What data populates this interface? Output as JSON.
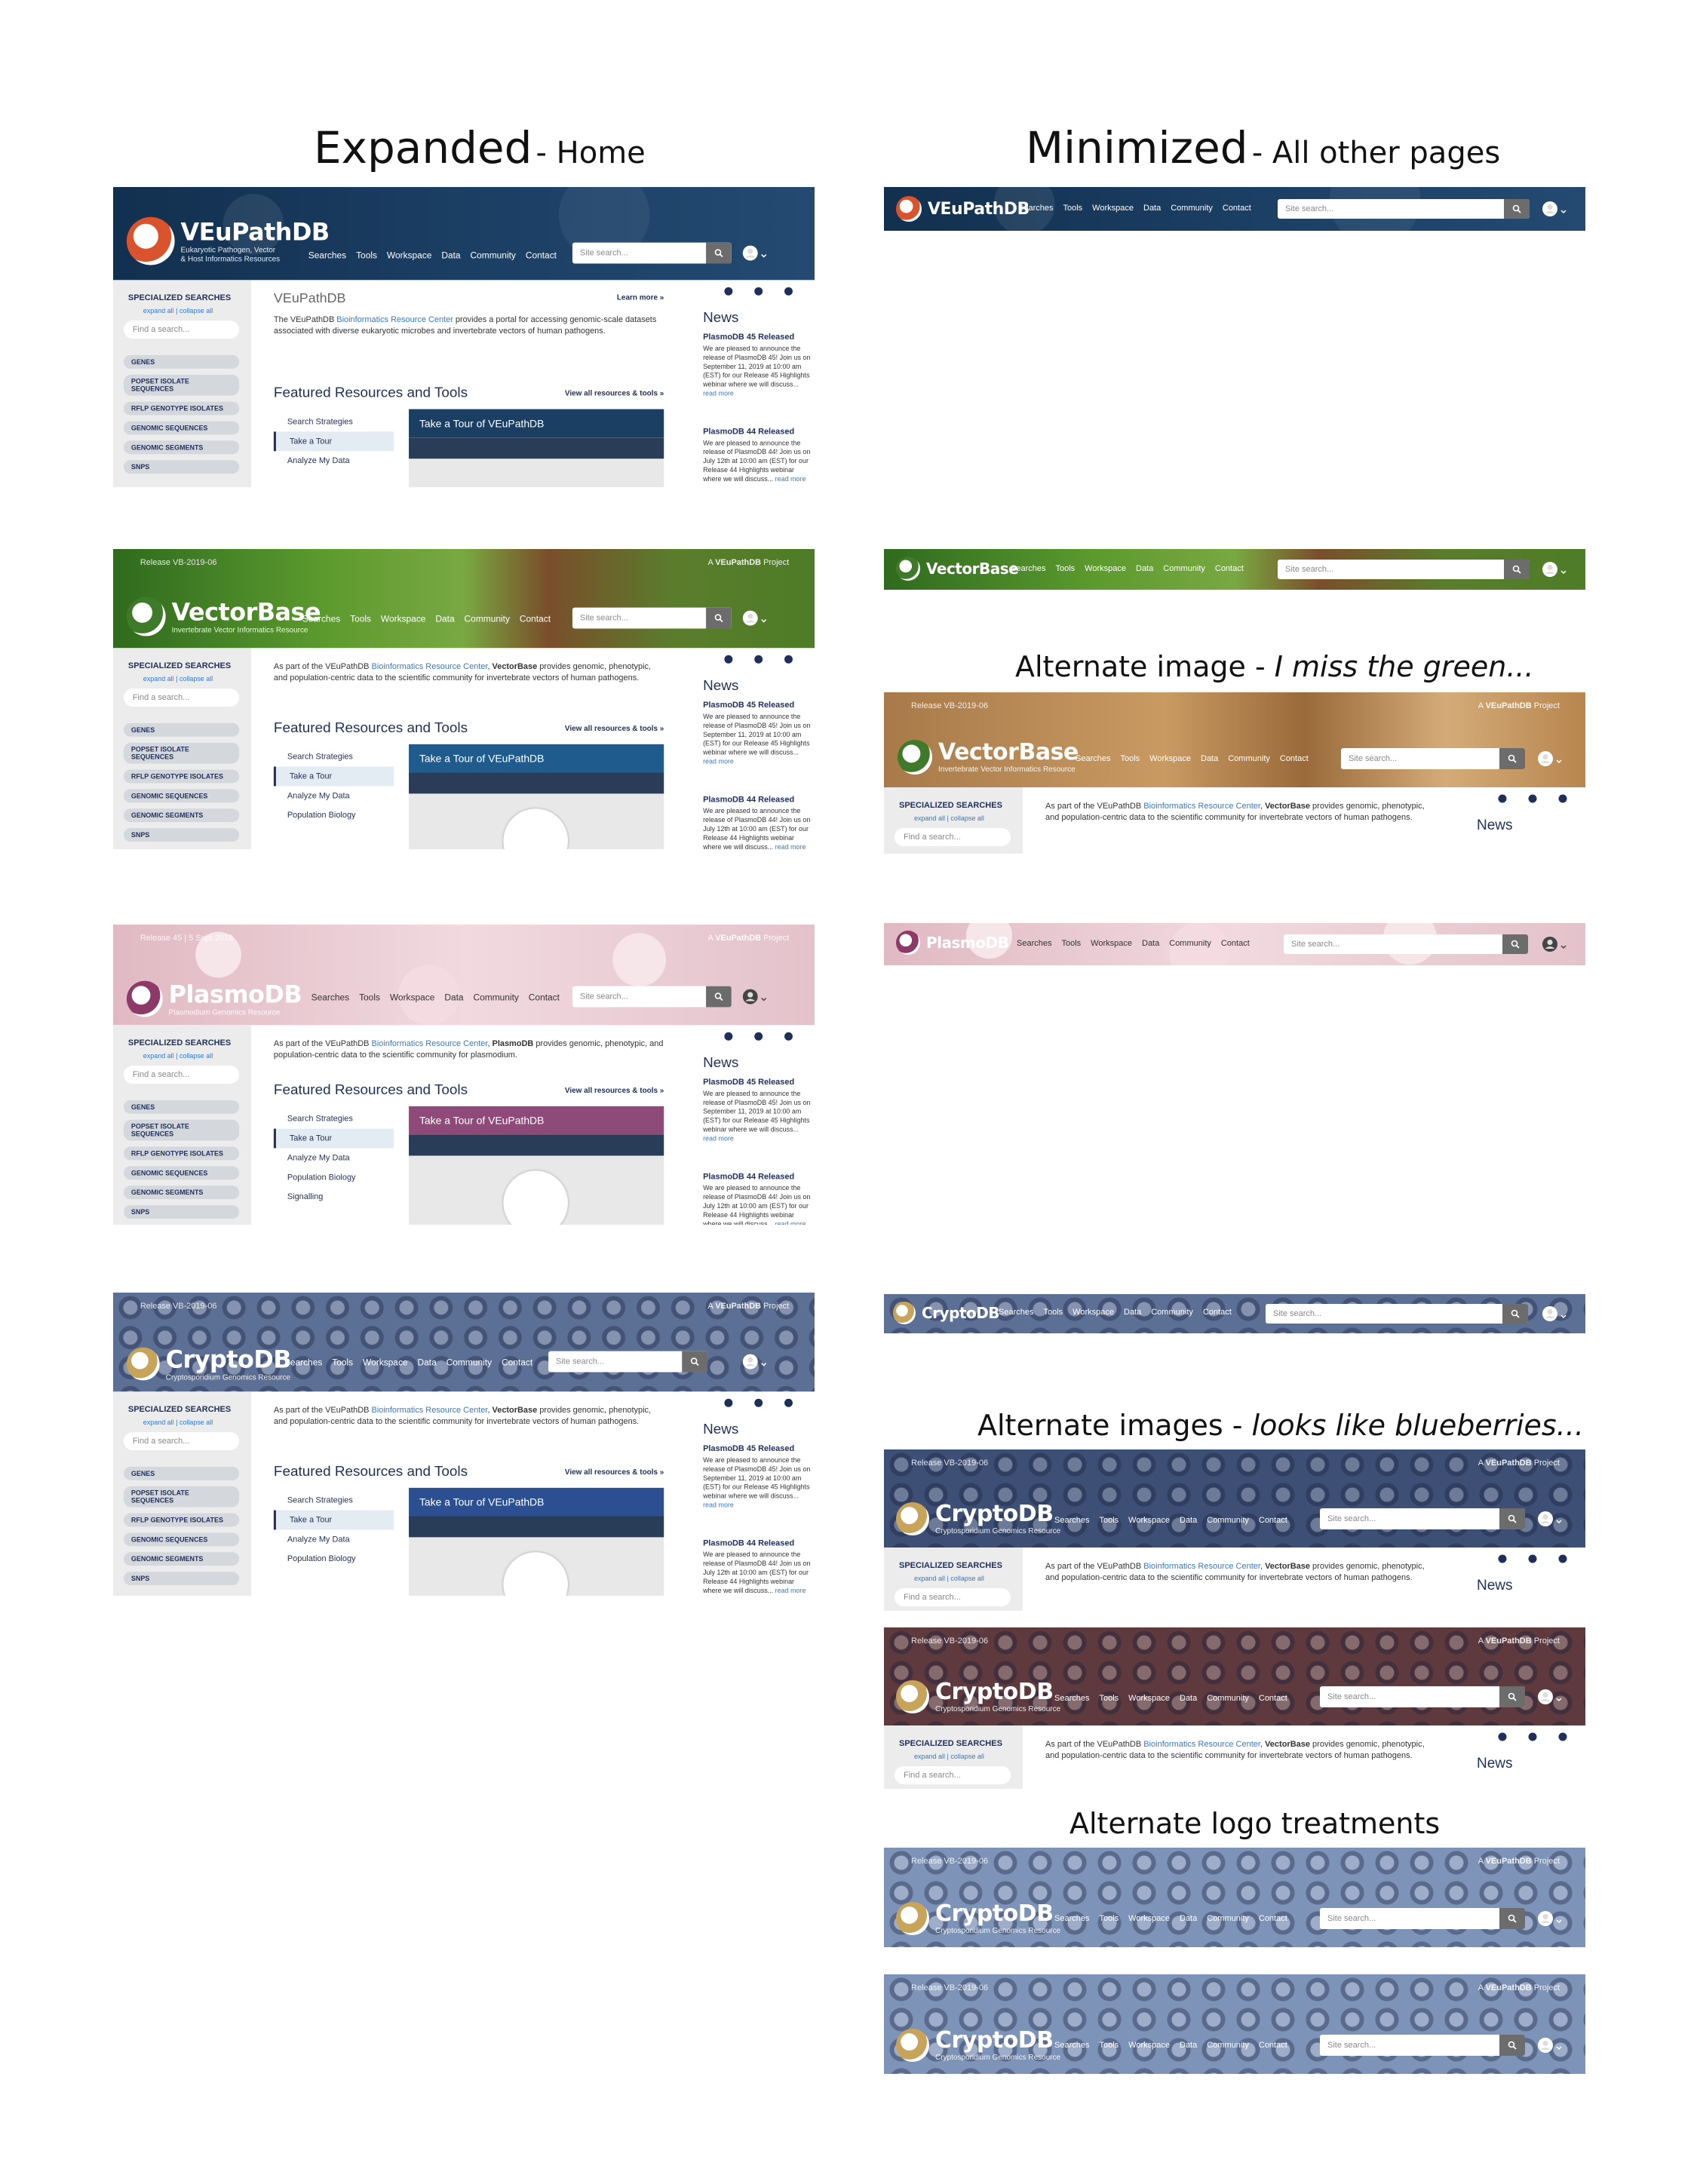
{
  "headings": {
    "expanded_big": "Expanded",
    "expanded_small": "- Home",
    "minimized_big": "Minimized",
    "minimized_small": "- All other pages",
    "alt_vector_prefix": "Alternate image - ",
    "alt_vector_italic": "I miss the green...",
    "alt_crypto_prefix": "Alternate images - ",
    "alt_crypto_italic": "looks like blueberries...",
    "alt_logo": "Alternate logo treatments"
  },
  "nav": [
    "Searches",
    "Tools",
    "Workspace",
    "Data",
    "Community",
    "Contact"
  ],
  "search_placeholder": "Site search...",
  "project_label_prefix": "A",
  "project_label_name": "VEuPathDB",
  "project_label_suffix": "Project",
  "sites": {
    "veupath": {
      "name": "VEuPathDB",
      "tagline_1": "Eukaryotic Pathogen, Vector",
      "tagline_2": "& Host Informatics Resources",
      "color": "#1b3e63"
    },
    "vector": {
      "name": "VectorBase",
      "tagline": "Invertebrate Vector Informatics Resource",
      "release": "Release VB-2019-06",
      "color": "#3f7a2a",
      "alt_color": "#b8864f"
    },
    "plasmo": {
      "name": "PlasmoDB",
      "tagline": "Plasmodium Genomics Resource",
      "release": "Release 45 | 5 Sept 2019",
      "color": "#e8c8d0",
      "accent": "#8e3a68"
    },
    "crypto": {
      "name": "CryptoDB",
      "tagline": "Cryptosporidium Genomics Resource",
      "release": "Release VB-2019-06",
      "color": "#5c6f95",
      "alt_dark": "#3d4f75",
      "alt_maroon": "#5e3a3e",
      "alt_light": "#7e93b8"
    }
  },
  "sidebar": {
    "heading": "SPECIALIZED SEARCHES",
    "expand": "expand all | collapse all",
    "find": "Find a search...",
    "items": [
      "GENES",
      "POPSET ISOLATE SEQUENCES",
      "RFLP GENOTYPE ISOLATES",
      "GENOMIC SEQUENCES",
      "GENOMIC SEGMENTS",
      "SNPS"
    ]
  },
  "intros": {
    "veupath_title": "VEuPathDB",
    "veupath_pre": "The VEuPathDB ",
    "veupath_link": "Bioinformatics Resource Center",
    "veupath_post": " provides a portal for accessing genomic-scale datasets associated with diverse eukaryotic microbes and invertebrate vectors of human pathogens.",
    "learn_more": "Learn more »",
    "part_pre": "As part of the VEuPathDB ",
    "part_link": "Bioinformatics Resource Center",
    "vector_name": "VectorBase",
    "vector_post": " provides genomic, phenotypic, and population-centric data to the scientific community for invertebrate vectors of human pathogens.",
    "plasmo_name": "PlasmoDB",
    "plasmo_post": " provides genomic, phenotypic, and population-centric data to the scientific community for plasmodium."
  },
  "featured": {
    "title": "Featured Resources and Tools",
    "view_all": "View all resources & tools »",
    "tools_veupath": [
      "Search Strategies",
      "Take a Tour",
      "Analyze My Data"
    ],
    "tools_vector": [
      "Search Strategies",
      "Take a Tour",
      "Analyze My Data",
      "Population Biology"
    ],
    "tools_plasmo": [
      "Search Strategies",
      "Take a Tour",
      "Analyze My Data",
      "Population Biology",
      "Signalling"
    ],
    "tools_crypto": [
      "Search Strategies",
      "Take a Tour",
      "Analyze My Data",
      "Population Biology"
    ],
    "tour_title": "Take a Tour of VEuPathDB"
  },
  "news": {
    "title": "News",
    "item1_title": "PlasmoDB 45 Released",
    "item1_body": "We are pleased to announce the release of PlasmoDB 45! Join us on September 11, 2019 at 10:00 am (EST) for our Release 45 Highlights webinar where we will discuss...",
    "item2_title": "PlasmoDB 44 Released",
    "item2_body": "We are pleased to announce the release of PlasmoDB 44! Join us on July 12th at 10:00 am (EST) for our Release 44 Highlights webinar where we will discuss...",
    "read_more": "read more"
  },
  "icons": [
    "logo-mark-icon",
    "search-icon",
    "user-icon",
    "chevron-down-icon",
    "twitter-icon",
    "facebook-icon",
    "youtube-icon",
    "filter-icon",
    "play-icon"
  ]
}
